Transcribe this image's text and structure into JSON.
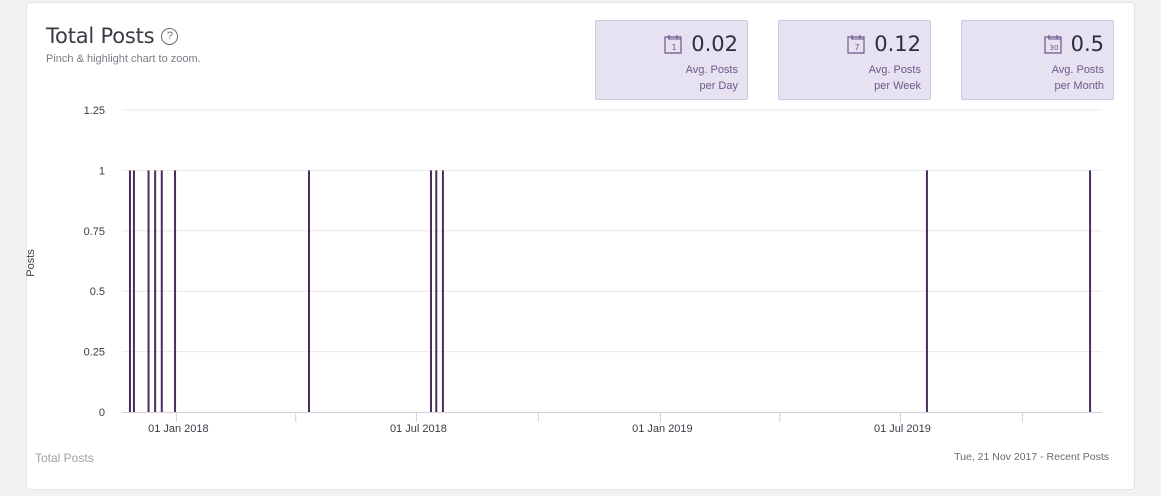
{
  "header": {
    "title": "Total Posts",
    "help_glyph": "?",
    "subtitle": "Pinch & highlight chart to zoom."
  },
  "stats": [
    {
      "icon": "calendar-1-icon",
      "icon_text": "1",
      "value": "0.02",
      "label_line1": "Avg. Posts",
      "label_line2": "per Day"
    },
    {
      "icon": "calendar-7-icon",
      "icon_text": "7",
      "value": "0.12",
      "label_line1": "Avg. Posts",
      "label_line2": "per Week"
    },
    {
      "icon": "calendar-30-icon",
      "icon_text": "30",
      "value": "0.5",
      "label_line1": "Avg. Posts",
      "label_line2": "per Month"
    }
  ],
  "footer": {
    "left": "Total Posts",
    "right": "Tue, 21 Nov 2017 - Recent Posts"
  },
  "colors": {
    "bar": "#4a2c5e",
    "grid": "#e8e8ec",
    "stat_bg": "#e7e2f2"
  },
  "chart_data": {
    "type": "bar",
    "title": "Total Posts",
    "ylabel": "Posts",
    "xlabel": "",
    "ylim": [
      0,
      1.25
    ],
    "yticks": [
      "0",
      "0.25",
      "0.5",
      "0.75",
      "1",
      "1.25"
    ],
    "xlim": [
      "2017-11-21",
      "2019-11-30"
    ],
    "xticks": [
      {
        "date": "2018-01-01",
        "label": "01 Jan 2018"
      },
      {
        "date": "2018-07-01",
        "label": "01 Jul 2018"
      },
      {
        "date": "2019-01-01",
        "label": "01 Jan 2019"
      },
      {
        "date": "2019-07-01",
        "label": "01 Jul 2019"
      }
    ],
    "grid": true,
    "series": [
      {
        "dates": [
          "2017-11-27",
          "2017-11-30",
          "2017-12-11",
          "2017-12-16",
          "2017-12-21",
          "2017-12-31",
          "2018-04-11",
          "2018-07-12",
          "2018-07-16",
          "2018-07-21",
          "2019-07-21",
          "2019-11-21"
        ],
        "values": [
          1,
          1,
          1,
          1,
          1,
          1,
          1,
          1,
          1,
          1,
          1,
          1
        ]
      }
    ]
  }
}
